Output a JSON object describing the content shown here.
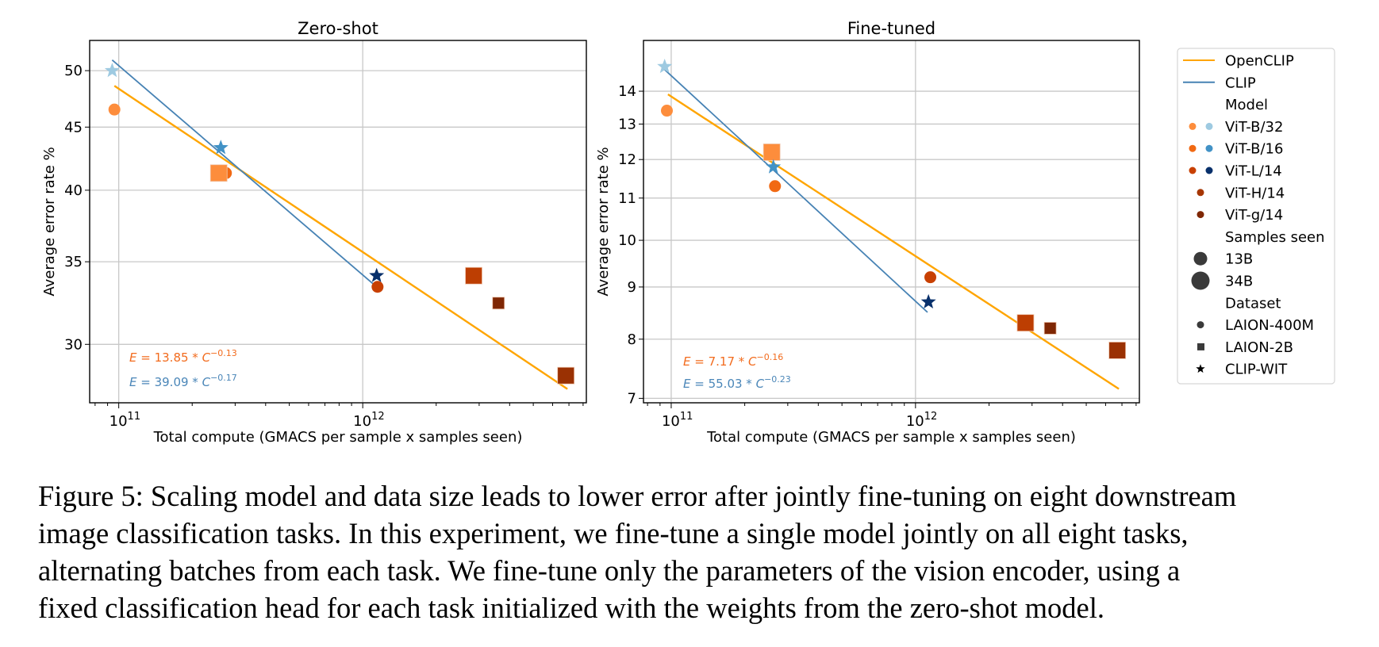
{
  "chart_data": [
    {
      "type": "scatter",
      "title": "Zero-shot",
      "xlabel": "Total compute (GMACS per sample x samples seen)",
      "ylabel": "Average error rate %",
      "xscale": "log",
      "yscale": "log",
      "xlim": [
        76000000000.0,
        8250000000000.0
      ],
      "ylim": [
        26.9,
        52.9
      ],
      "grid": true,
      "xticks": [
        {
          "value": 100000000000.0,
          "base": "10",
          "exp": "11"
        },
        {
          "value": 1000000000000.0,
          "base": "10",
          "exp": "12"
        }
      ],
      "yticks": [
        30,
        35,
        40,
        45,
        50
      ],
      "points": [
        {
          "model": "ViT-B/32",
          "dataset": "CLIP-WIT",
          "samples": "13B",
          "x": 94000000000.0,
          "y": 50.0,
          "color": "#9ecae1"
        },
        {
          "model": "ViT-B/32",
          "dataset": "LAION-400M",
          "samples": "13B",
          "x": 96000000000.0,
          "y": 46.5,
          "color": "#fd8d3c"
        },
        {
          "model": "ViT-B/16",
          "dataset": "LAION-400M",
          "samples": "13B",
          "x": 275000000000.0,
          "y": 41.3,
          "color": "#f16913"
        },
        {
          "model": "ViT-B/16",
          "dataset": "CLIP-WIT",
          "samples": "13B",
          "x": 262000000000.0,
          "y": 43.3,
          "color": "#4292c6"
        },
        {
          "model": "ViT-B/16",
          "dataset": "LAION-2B",
          "samples": "34B",
          "x": 257000000000.0,
          "y": 41.3,
          "color": "#fd8d3c"
        },
        {
          "model": "ViT-L/14",
          "dataset": "CLIP-WIT",
          "samples": "13B",
          "x": 1140000000000.0,
          "y": 34.1,
          "color": "#08306b"
        },
        {
          "model": "ViT-L/14",
          "dataset": "LAION-400M",
          "samples": "13B",
          "x": 1150000000000.0,
          "y": 33.4,
          "color": "#c84002"
        },
        {
          "model": "ViT-H/14",
          "dataset": "LAION-2B",
          "samples": "34B",
          "x": 2850000000000.0,
          "y": 34.1,
          "color": "#bd3e02"
        },
        {
          "model": "ViT-g/14",
          "dataset": "LAION-2B",
          "samples": "13B",
          "x": 3600000000000.0,
          "y": 32.4,
          "color": "#7f2704"
        },
        {
          "model": "ViT-g/14",
          "dataset": "LAION-2B",
          "samples": "34B",
          "x": 6800000000000.0,
          "y": 28.3,
          "color": "#9a3103"
        }
      ],
      "fits": [
        {
          "name": "OpenCLIP",
          "color": "#ffa500",
          "x": [
            96000000000.0,
            6900000000000.0
          ],
          "y": [
            48.6,
            27.6
          ],
          "equation": {
            "lhs": "E",
            "coef": "13.85",
            "base": "C",
            "exp": "−0.13",
            "color": "#f26b1d"
          }
        },
        {
          "name": "CLIP",
          "color": "#4682b4",
          "x": [
            94000000000.0,
            1100000000000.0
          ],
          "y": [
            51.0,
            33.6
          ],
          "equation": {
            "lhs": "E",
            "coef": "39.09",
            "base": "C",
            "exp": "−0.17",
            "color": "#4a86b8"
          }
        }
      ]
    },
    {
      "type": "scatter",
      "title": "Fine-tuned",
      "xlabel": "Total compute (GMACS per sample x samples seen)",
      "ylabel": "Average error rate %",
      "xscale": "log",
      "yscale": "log",
      "xlim": [
        77000000000.0,
        8250000000000.0
      ],
      "ylim": [
        6.93,
        15.7
      ],
      "grid": true,
      "xticks": [
        {
          "value": 100000000000.0,
          "base": "10",
          "exp": "11"
        },
        {
          "value": 1000000000000.0,
          "base": "10",
          "exp": "12"
        }
      ],
      "yticks": [
        7,
        8,
        9,
        10,
        11,
        12,
        13,
        14
      ],
      "points": [
        {
          "model": "ViT-B/32",
          "dataset": "CLIP-WIT",
          "samples": "13B",
          "x": 94000000000.0,
          "y": 14.8,
          "color": "#9ecae1"
        },
        {
          "model": "ViT-B/32",
          "dataset": "LAION-400M",
          "samples": "13B",
          "x": 96000000000.0,
          "y": 13.4,
          "color": "#fd8d3c"
        },
        {
          "model": "ViT-B/16",
          "dataset": "LAION-2B",
          "samples": "34B",
          "x": 258000000000.0,
          "y": 12.2,
          "color": "#fd8d3c"
        },
        {
          "model": "ViT-B/16",
          "dataset": "CLIP-WIT",
          "samples": "13B",
          "x": 262000000000.0,
          "y": 11.8,
          "color": "#4292c6"
        },
        {
          "model": "ViT-B/16",
          "dataset": "LAION-400M",
          "samples": "13B",
          "x": 266000000000.0,
          "y": 11.3,
          "color": "#f16913"
        },
        {
          "model": "ViT-L/14",
          "dataset": "LAION-400M",
          "samples": "13B",
          "x": 1150000000000.0,
          "y": 9.2,
          "color": "#c84002"
        },
        {
          "model": "ViT-L/14",
          "dataset": "CLIP-WIT",
          "samples": "13B",
          "x": 1130000000000.0,
          "y": 8.7,
          "color": "#08306b"
        },
        {
          "model": "ViT-H/14",
          "dataset": "LAION-2B",
          "samples": "34B",
          "x": 2820000000000.0,
          "y": 8.3,
          "color": "#bd3e02"
        },
        {
          "model": "ViT-g/14",
          "dataset": "LAION-2B",
          "samples": "13B",
          "x": 3560000000000.0,
          "y": 8.2,
          "color": "#7f2704"
        },
        {
          "model": "ViT-g/14",
          "dataset": "LAION-2B",
          "samples": "34B",
          "x": 6700000000000.0,
          "y": 7.8,
          "color": "#9a3103"
        }
      ],
      "fits": [
        {
          "name": "OpenCLIP",
          "color": "#ffa500",
          "x": [
            97000000000.0,
            6800000000000.0
          ],
          "y": [
            13.9,
            7.15
          ],
          "equation": {
            "lhs": "E",
            "coef": "7.17",
            "base": "C",
            "exp": "−0.16",
            "color": "#f26b1d"
          }
        },
        {
          "name": "CLIP",
          "color": "#4682b4",
          "x": [
            94000000000.0,
            1120000000000.0
          ],
          "y": [
            14.7,
            8.5
          ],
          "equation": {
            "lhs": "E",
            "coef": "55.03",
            "base": "C",
            "exp": "−0.23",
            "color": "#4a86b8"
          }
        }
      ]
    }
  ],
  "legend": {
    "position": "right",
    "items": [
      {
        "kind": "line",
        "label": "OpenCLIP",
        "color": "#ffa500"
      },
      {
        "kind": "line",
        "label": "CLIP",
        "color": "#4682b4"
      },
      {
        "kind": "header",
        "label": "Model"
      },
      {
        "kind": "dots",
        "label": "ViT-B/32",
        "colors": [
          "#fd8d3c",
          "#9ecae1"
        ]
      },
      {
        "kind": "dots",
        "label": "ViT-B/16",
        "colors": [
          "#f16913",
          "#4292c6"
        ]
      },
      {
        "kind": "dots",
        "label": "ViT-L/14",
        "colors": [
          "#c84002",
          "#08306b"
        ]
      },
      {
        "kind": "dots",
        "label": "ViT-H/14",
        "colors": [
          "#a63603"
        ]
      },
      {
        "kind": "dots",
        "label": "ViT-g/14",
        "colors": [
          "#7f2704"
        ]
      },
      {
        "kind": "header",
        "label": "Samples seen"
      },
      {
        "kind": "size",
        "label": "13B",
        "size": "small"
      },
      {
        "kind": "size",
        "label": "34B",
        "size": "large"
      },
      {
        "kind": "header",
        "label": "Dataset"
      },
      {
        "kind": "marker",
        "label": "LAION-400M",
        "marker": "circle"
      },
      {
        "kind": "marker",
        "label": "LAION-2B",
        "marker": "square"
      },
      {
        "kind": "marker",
        "label": "CLIP-WIT",
        "marker": "star"
      }
    ]
  },
  "caption": {
    "lines": [
      "Figure 5: Scaling model and data size leads to lower error after jointly fine-tuning on eight downstream",
      "image classification tasks. In this experiment, we fine-tune a single model jointly on all eight tasks,",
      "alternating batches from each task. We fine-tune only the parameters of the vision encoder, using a",
      "fixed classification head for each task initialized with the weights from the zero-shot model."
    ]
  }
}
